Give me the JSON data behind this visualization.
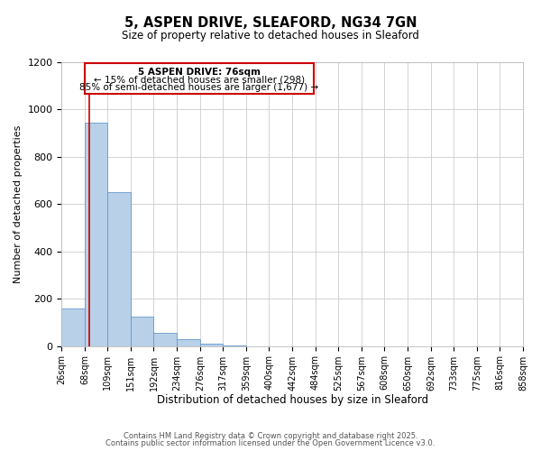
{
  "title": "5, ASPEN DRIVE, SLEAFORD, NG34 7GN",
  "subtitle": "Size of property relative to detached houses in Sleaford",
  "xlabel": "Distribution of detached houses by size in Sleaford",
  "ylabel": "Number of detached properties",
  "bar_values": [
    160,
    945,
    650,
    125,
    57,
    28,
    10,
    2,
    0,
    0,
    0,
    0,
    0,
    0,
    0,
    0,
    0,
    0,
    0,
    0
  ],
  "bin_labels": [
    "26sqm",
    "68sqm",
    "109sqm",
    "151sqm",
    "192sqm",
    "234sqm",
    "276sqm",
    "317sqm",
    "359sqm",
    "400sqm",
    "442sqm",
    "484sqm",
    "525sqm",
    "567sqm",
    "608sqm",
    "650sqm",
    "692sqm",
    "733sqm",
    "775sqm",
    "816sqm",
    "858sqm"
  ],
  "bar_color": "#b8d0e8",
  "bar_edge_color": "#6699cc",
  "ylim": [
    0,
    1200
  ],
  "yticks": [
    0,
    200,
    400,
    600,
    800,
    1000,
    1200
  ],
  "annotation_title": "5 ASPEN DRIVE: 76sqm",
  "annotation_line1": "← 15% of detached houses are smaller (298)",
  "annotation_line2": "85% of semi-detached houses are larger (1,677) →",
  "annotation_box_color": "#cc0000",
  "grid_color": "#cccccc",
  "background_color": "#ffffff",
  "footer1": "Contains HM Land Registry data © Crown copyright and database right 2025.",
  "footer2": "Contains public sector information licensed under the Open Government Licence v3.0.",
  "bin_edges": [
    26,
    68,
    109,
    151,
    192,
    234,
    276,
    317,
    359,
    400,
    442,
    484,
    525,
    567,
    608,
    650,
    692,
    733,
    775,
    816,
    858
  ]
}
